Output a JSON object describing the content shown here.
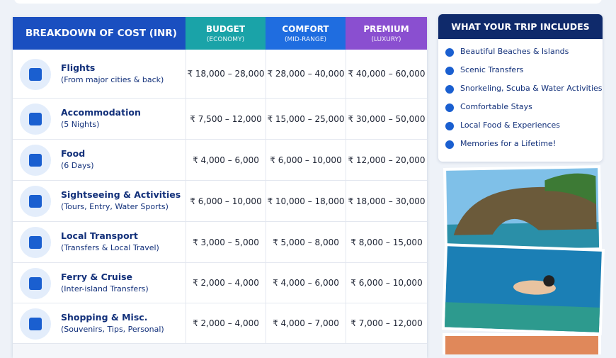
{
  "table": {
    "header": {
      "title": "BREAKDOWN OF COST (INR)",
      "columns": [
        {
          "name": "BUDGET",
          "sub": "(ECONOMY)"
        },
        {
          "name": "COMFORT",
          "sub": "(MID-RANGE)"
        },
        {
          "name": "PREMIUM",
          "sub": "(LUXURY)"
        }
      ]
    },
    "rows": [
      {
        "name": "Flights",
        "sub": "(From major cities & back)",
        "values": [
          "₹ 18,000 – 28,000",
          "₹ 28,000 – 40,000",
          "₹ 40,000 – 60,000"
        ]
      },
      {
        "name": "Accommodation",
        "sub": "(5 Nights)",
        "values": [
          "₹ 7,500 – 12,000",
          "₹ 15,000 – 25,000",
          "₹ 30,000 – 50,000"
        ]
      },
      {
        "name": "Food",
        "sub": "(6 Days)",
        "values": [
          "₹ 4,000 – 6,000",
          "₹ 6,000 – 10,000",
          "₹ 12,000 – 20,000"
        ]
      },
      {
        "name": "Sightseeing & Activities",
        "sub": "(Tours, Entry, Water Sports)",
        "values": [
          "₹ 6,000 – 10,000",
          "₹ 10,000 – 18,000",
          "₹ 18,000 – 30,000"
        ]
      },
      {
        "name": "Local Transport",
        "sub": "(Transfers & Local Travel)",
        "values": [
          "₹ 3,000 – 5,000",
          "₹ 5,000 – 8,000",
          "₹ 8,000 – 15,000"
        ]
      },
      {
        "name": "Ferry & Cruise",
        "sub": "(Inter-island Transfers)",
        "values": [
          "₹ 2,000 – 4,000",
          "₹ 4,000 – 6,000",
          "₹ 6,000 – 10,000"
        ]
      },
      {
        "name": "Shopping & Misc.",
        "sub": "(Souvenirs, Tips, Personal)",
        "values": [
          "₹ 2,000 – 4,000",
          "₹ 4,000 – 7,000",
          "₹ 7,000 – 12,000"
        ]
      }
    ]
  },
  "includes": {
    "title": "WHAT YOUR TRIP INCLUDES",
    "items": [
      "Beautiful Beaches & Islands",
      "Scenic Transfers",
      "Snorkeling, Scuba & Water Activities",
      "Comfortable Stays",
      "Local Food & Experiences",
      "Memories for a Lifetime!"
    ]
  }
}
